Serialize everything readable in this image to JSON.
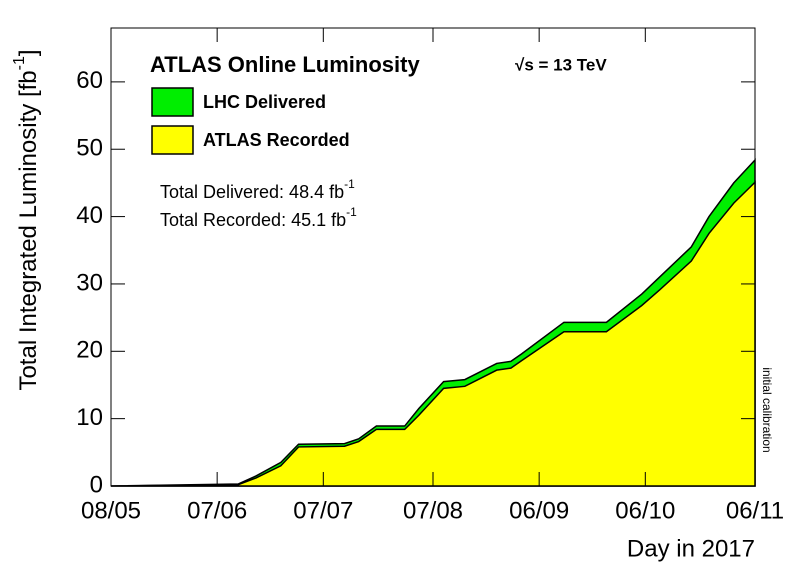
{
  "chart_data": {
    "type": "area",
    "title": "ATLAS Online Luminosity",
    "subtitle": "√s = 13 TeV",
    "x_label": "Day in 2017",
    "y_label": {
      "text": "Total Integrated Luminosity [fb",
      "sup": "-1",
      "end": "]"
    },
    "annotations": [
      {
        "text": "Total Delivered: 48.4 fb",
        "sup": "-1"
      },
      {
        "text": "Total Recorded: 45.1 fb",
        "sup": "-1"
      },
      {
        "text": "initial calibration"
      }
    ],
    "x": [
      0,
      36,
      41,
      48,
      53,
      66,
      70,
      75,
      83,
      87,
      94,
      100,
      109,
      113,
      116,
      128,
      140,
      150,
      155,
      164,
      169,
      176,
      182
    ],
    "series": [
      {
        "name": "LHC Delivered",
        "color": "#00ee00",
        "values": [
          0,
          0.3,
          1.5,
          3.5,
          6.2,
          6.3,
          7.0,
          8.9,
          8.9,
          11.5,
          15.5,
          15.8,
          18.2,
          18.5,
          19.6,
          24.3,
          24.3,
          28.5,
          31.0,
          35.5,
          40.0,
          45.0,
          48.4
        ]
      },
      {
        "name": "ATLAS Recorded",
        "color": "#ffff00",
        "values": [
          0,
          0.2,
          1.2,
          3.0,
          5.8,
          5.9,
          6.6,
          8.4,
          8.4,
          10.5,
          14.5,
          14.8,
          17.2,
          17.5,
          18.6,
          22.9,
          22.9,
          26.8,
          29.1,
          33.4,
          37.5,
          42.0,
          45.1
        ]
      }
    ],
    "xlim": [
      0,
      182
    ],
    "xticks": [
      {
        "value": 0,
        "label": "08/05"
      },
      {
        "value": 30,
        "label": "07/06"
      },
      {
        "value": 60,
        "label": "07/07"
      },
      {
        "value": 91,
        "label": "07/08"
      },
      {
        "value": 121,
        "label": "06/09"
      },
      {
        "value": 151,
        "label": "06/10"
      },
      {
        "value": 182,
        "label": "06/11"
      }
    ],
    "ylim": [
      0,
      68
    ],
    "yticks": [
      0,
      10,
      20,
      30,
      40,
      50,
      60
    ],
    "grid": false
  }
}
